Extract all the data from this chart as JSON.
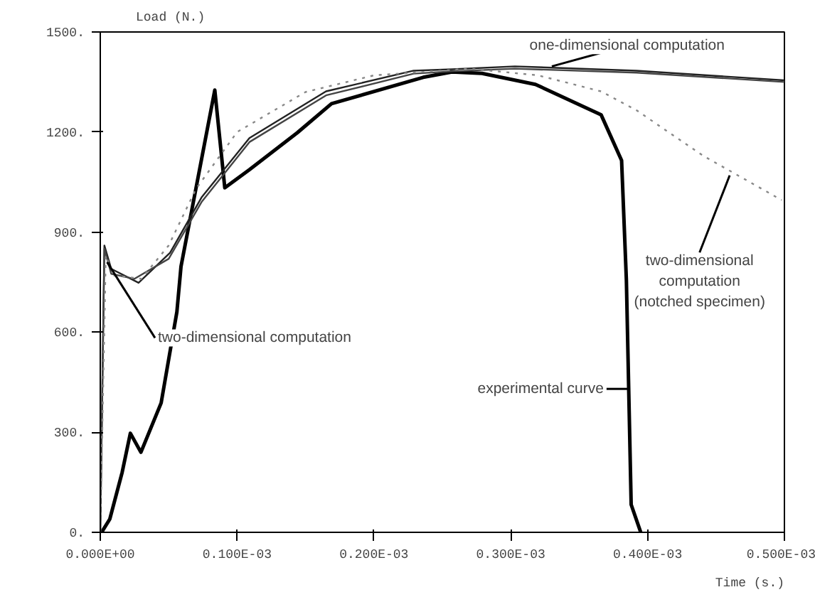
{
  "chart_data": {
    "type": "line",
    "xlabel": "Time (s.)",
    "ylabel": "Load (N.)",
    "xlim": [
      0,
      0.0005
    ],
    "ylim": [
      0,
      1500
    ],
    "xticks": [
      {
        "value": 0,
        "label": "0.000E+00"
      },
      {
        "value": 0.0001,
        "label": "0.100E-03"
      },
      {
        "value": 0.0002,
        "label": "0.200E-03"
      },
      {
        "value": 0.0003,
        "label": "0.300E-03"
      },
      {
        "value": 0.0004,
        "label": "0.400E-03"
      },
      {
        "value": 0.0005,
        "label": "0.500E-03"
      }
    ],
    "yticks": [
      {
        "value": 0,
        "label": "0."
      },
      {
        "value": 300,
        "label": "300."
      },
      {
        "value": 600,
        "label": "600."
      },
      {
        "value": 900,
        "label": "900."
      },
      {
        "value": 1200,
        "label": "1200."
      },
      {
        "value": 1500,
        "label": "1500."
      }
    ],
    "grid": false,
    "marker": "none",
    "series": [
      {
        "color": "#000000",
        "line_style": "solid",
        "x": [
          1e-06,
          7e-06,
          1.6e-05,
          2.2e-05,
          2.97e-05,
          4.45e-05,
          5.6e-05,
          5.9e-05,
          8.37e-05,
          9.1e-05,
          0.000109,
          0.000144,
          0.000169,
          0.000236,
          0.000257,
          0.000279,
          0.000318,
          0.000366,
          0.000381,
          0.0003845,
          0.000388,
          0.000395
        ],
        "values": [
          0,
          40,
          180,
          297,
          240,
          388,
          661,
          797,
          1326,
          1033,
          1087,
          1198,
          1285,
          1364,
          1380,
          1376,
          1343,
          1252,
          1115,
          756,
          83,
          0
        ]
      },
      {
        "color": "#222222",
        "line_style": "solid",
        "x": [
          0,
          3e-06,
          8e-06,
          2.8e-05,
          5.1e-05,
          7.4e-05,
          0.000109,
          0.000165,
          0.000229,
          0.000257,
          0.000303,
          0.000392,
          0.0005
        ],
        "values": [
          0,
          860,
          790,
          748,
          838,
          1004,
          1182,
          1322,
          1384,
          1388,
          1397,
          1384,
          1355
        ]
      },
      {
        "color": "#444444",
        "line_style": "solid",
        "x": [
          0,
          3e-06,
          8e-06,
          2.5e-05,
          5e-05,
          7.4e-05,
          0.000109,
          0.000165,
          0.000229,
          0.000257,
          0.000303,
          0.000392,
          0.0005
        ],
        "values": [
          0,
          850,
          775,
          760,
          820,
          990,
          1170,
          1310,
          1375,
          1382,
          1390,
          1378,
          1350
        ]
      },
      {
        "color": "#888888",
        "line_style": "dotted",
        "x": [
          0,
          4e-06,
          1e-05,
          3e-05,
          5e-05,
          7e-05,
          0.0001,
          0.00015,
          0.0002,
          0.00027,
          0.00032,
          0.000366,
          0.000392,
          0.000441,
          0.000498
        ],
        "values": [
          0,
          830,
          770,
          760,
          860,
          1030,
          1200,
          1320,
          1370,
          1390,
          1370,
          1322,
          1265,
          1128,
          996
        ]
      }
    ],
    "annotations": [
      {
        "text": "one-dimensional computation",
        "x": 0.00033,
        "y": 1397
      },
      {
        "text": "two-dimensional computation",
        "x": 5e-06,
        "y": 810
      },
      {
        "text": "two-dimensional\ncomputation\n(notched specimen)",
        "x": 0.00046,
        "y": 1070
      },
      {
        "text": "experimental curve",
        "x": 0.000386,
        "y": 430
      }
    ]
  }
}
